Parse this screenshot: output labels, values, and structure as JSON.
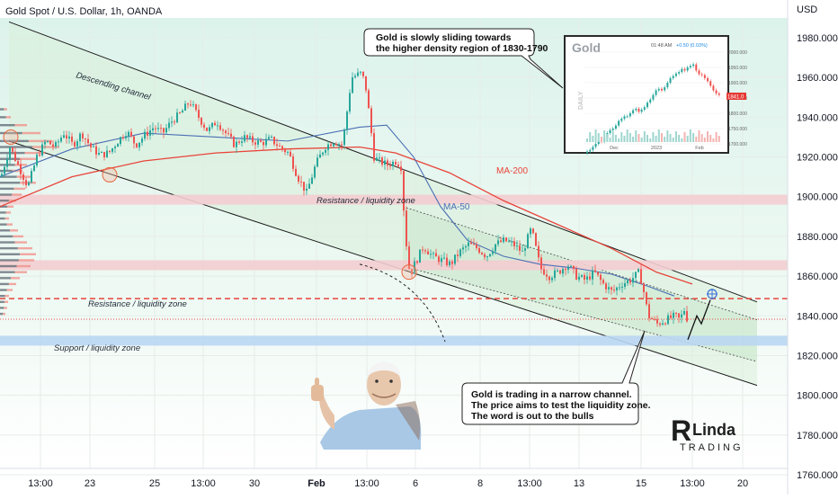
{
  "header": {
    "title": "Gold Spot / U.S. Dollar, 1h, OANDA",
    "currency": "USD"
  },
  "colors": {
    "up": "#26a69a",
    "down": "#ef5350",
    "ma200": "#e8443a",
    "ma50": "#4a6fb4",
    "resistance_zone": "#f3cdd0",
    "support_zone": "#b9d6f2",
    "channel_fill": "#e4f3e6",
    "current_price_bg": "#e8443a",
    "price_line": "#e8443a"
  },
  "chart_data": {
    "type": "candlestick",
    "title": "Gold Spot / U.S. Dollar, 1h, OANDA",
    "ylabel": "USD",
    "ylim": [
      1756,
      2000
    ],
    "y_ticks": [
      1760,
      1780,
      1800,
      1820,
      1840,
      1860,
      1880,
      1900,
      1920,
      1940,
      1960,
      1980
    ],
    "y_tick_labels": [
      "1760.000",
      "1780.000",
      "1800.000",
      "1820.000",
      "1840.000",
      "1860.000",
      "1880.000",
      "1900.000",
      "1920.000",
      "1940.000",
      "1960.000",
      "1980.000"
    ],
    "x_tick_labels": [
      "13:00",
      "23",
      "25",
      "13:00",
      "30",
      "Feb",
      "13:00",
      "6",
      "8",
      "13:00",
      "13",
      "15",
      "13:00",
      "20"
    ],
    "price_marks": [
      {
        "value": "1848.653",
        "price": 1848.653,
        "style": "dashed"
      },
      {
        "value": "1838.325",
        "price": 1838.325,
        "style": "dotted"
      }
    ],
    "path": [
      [
        0,
        1910
      ],
      [
        10,
        1925
      ],
      [
        20,
        1915
      ],
      [
        30,
        1905
      ],
      [
        40,
        1920
      ],
      [
        50,
        1928
      ],
      [
        60,
        1925
      ],
      [
        70,
        1932
      ],
      [
        80,
        1926
      ],
      [
        90,
        1932
      ],
      [
        100,
        1925
      ],
      [
        110,
        1921
      ],
      [
        120,
        1922
      ],
      [
        130,
        1928
      ],
      [
        140,
        1933
      ],
      [
        150,
        1926
      ],
      [
        160,
        1931
      ],
      [
        170,
        1935
      ],
      [
        180,
        1932
      ],
      [
        190,
        1938
      ],
      [
        200,
        1942
      ],
      [
        210,
        1948
      ],
      [
        220,
        1940
      ],
      [
        230,
        1933
      ],
      [
        240,
        1938
      ],
      [
        250,
        1932
      ],
      [
        260,
        1926
      ],
      [
        270,
        1930
      ],
      [
        280,
        1928
      ],
      [
        290,
        1927
      ],
      [
        300,
        1929
      ],
      [
        310,
        1925
      ],
      [
        320,
        1922
      ],
      [
        330,
        1910
      ],
      [
        340,
        1902
      ],
      [
        350,
        1916
      ],
      [
        360,
        1925
      ],
      [
        370,
        1928
      ],
      [
        380,
        1926
      ],
      [
        390,
        1960
      ],
      [
        400,
        1962
      ],
      [
        405,
        1958
      ],
      [
        410,
        1940
      ],
      [
        415,
        1920
      ],
      [
        420,
        1918
      ],
      [
        430,
        1916
      ],
      [
        440,
        1918
      ],
      [
        445,
        1915
      ],
      [
        450,
        1880
      ],
      [
        455,
        1860
      ],
      [
        460,
        1866
      ],
      [
        470,
        1875
      ],
      [
        480,
        1870
      ],
      [
        490,
        1868
      ],
      [
        500,
        1866
      ],
      [
        510,
        1872
      ],
      [
        520,
        1876
      ],
      [
        530,
        1874
      ],
      [
        540,
        1870
      ],
      [
        550,
        1876
      ],
      [
        560,
        1878
      ],
      [
        570,
        1876
      ],
      [
        580,
        1872
      ],
      [
        590,
        1884
      ],
      [
        600,
        1864
      ],
      [
        610,
        1860
      ],
      [
        620,
        1862
      ],
      [
        630,
        1866
      ],
      [
        640,
        1860
      ],
      [
        650,
        1858
      ],
      [
        660,
        1862
      ],
      [
        670,
        1856
      ],
      [
        680,
        1852
      ],
      [
        690,
        1856
      ],
      [
        700,
        1858
      ],
      [
        710,
        1862
      ],
      [
        715,
        1852
      ],
      [
        720,
        1840
      ],
      [
        730,
        1836
      ],
      [
        740,
        1838
      ],
      [
        750,
        1840
      ],
      [
        755,
        1838
      ],
      [
        760,
        1843
      ],
      [
        765,
        1836
      ]
    ],
    "ma200": [
      [
        0,
        1895
      ],
      [
        80,
        1910
      ],
      [
        160,
        1918
      ],
      [
        240,
        1922
      ],
      [
        320,
        1924
      ],
      [
        400,
        1925
      ],
      [
        440,
        1922
      ],
      [
        500,
        1912
      ],
      [
        560,
        1898
      ],
      [
        620,
        1886
      ],
      [
        680,
        1874
      ],
      [
        730,
        1862
      ],
      [
        770,
        1856
      ]
    ],
    "ma50": [
      [
        0,
        1910
      ],
      [
        80,
        1924
      ],
      [
        160,
        1932
      ],
      [
        240,
        1930
      ],
      [
        320,
        1928
      ],
      [
        400,
        1935
      ],
      [
        430,
        1936
      ],
      [
        460,
        1920
      ],
      [
        490,
        1895
      ],
      [
        520,
        1878
      ],
      [
        560,
        1870
      ],
      [
        600,
        1866
      ],
      [
        640,
        1864
      ],
      [
        680,
        1861
      ],
      [
        720,
        1855
      ],
      [
        750,
        1850
      ]
    ],
    "channel": {
      "upper": [
        [
          10,
          1988
        ],
        [
          842,
          1847
        ]
      ],
      "lower": [
        [
          10,
          1928
        ],
        [
          842,
          1805
        ]
      ],
      "inner_upper": [
        [
          448,
          1895
        ],
        [
          842,
          1838
        ]
      ],
      "inner_lower": [
        [
          448,
          1865
        ],
        [
          842,
          1817
        ]
      ]
    },
    "resistance_zones": [
      [
        1896,
        1901
      ],
      [
        1863,
        1868
      ]
    ],
    "support_zone": [
      1825,
      1830
    ],
    "projection": [
      [
        765,
        1828
      ],
      [
        775,
        1840
      ],
      [
        780,
        1836
      ],
      [
        790,
        1848
      ]
    ],
    "target_price": 1851,
    "volume_profile": [
      [
        1944,
        8
      ],
      [
        1940,
        12
      ],
      [
        1936,
        30
      ],
      [
        1932,
        45
      ],
      [
        1928,
        58
      ],
      [
        1925,
        66
      ],
      [
        1922,
        50
      ],
      [
        1919,
        40
      ],
      [
        1916,
        30
      ],
      [
        1913,
        25
      ],
      [
        1910,
        34
      ],
      [
        1907,
        40
      ],
      [
        1904,
        28
      ],
      [
        1901,
        24
      ],
      [
        1898,
        18
      ],
      [
        1895,
        15
      ],
      [
        1892,
        12
      ],
      [
        1889,
        10
      ],
      [
        1886,
        14
      ],
      [
        1883,
        20
      ],
      [
        1880,
        26
      ],
      [
        1877,
        30
      ],
      [
        1874,
        36
      ],
      [
        1871,
        40
      ],
      [
        1868,
        38
      ],
      [
        1865,
        34
      ],
      [
        1862,
        30
      ],
      [
        1859,
        22
      ],
      [
        1856,
        18
      ],
      [
        1853,
        14
      ],
      [
        1850,
        10
      ],
      [
        1847,
        9
      ],
      [
        1844,
        8
      ],
      [
        1841,
        6
      ]
    ]
  },
  "annotations": {
    "descending_channel": "Descending channel",
    "resistance_upper": "Resistance / liquidity zone",
    "resistance_lower": "Resistance / liquidity zone",
    "support": "Support / liquidity zone",
    "ma200_label": "MA-200",
    "ma50_label": "MA-50",
    "callout_top_line1": "Gold is slowly sliding towards",
    "callout_top_line2": "the higher density region of 1830-1790",
    "callout_bottom_line1": "Gold is trading in a narrow channel.",
    "callout_bottom_line2": "The price aims to test the liquidity zone.",
    "callout_bottom_line3": "The word is out to the bulls"
  },
  "inset": {
    "title": "Gold",
    "header_time": "01:48 AM",
    "header_change": "+0.50 (0.03%)",
    "side_label": "DAILY",
    "y_labels": [
      "2000.000",
      "1950.000",
      "1900.000",
      "1850.000",
      "1800.000",
      "1750.000",
      "1700.000"
    ],
    "price_tag": "1841.0",
    "x_labels": [
      "Dec",
      "2023",
      "Feb"
    ],
    "path": [
      1675,
      1680,
      1690,
      1700,
      1710,
      1708,
      1720,
      1735,
      1745,
      1750,
      1760,
      1775,
      1782,
      1790,
      1790,
      1800,
      1810,
      1815,
      1805,
      1812,
      1820,
      1835,
      1845,
      1860,
      1875,
      1880,
      1875,
      1885,
      1900,
      1915,
      1922,
      1930,
      1935,
      1945,
      1940,
      1950,
      1955,
      1960,
      1940,
      1928,
      1925,
      1915,
      1905,
      1890,
      1875,
      1865,
      1860
    ]
  },
  "logo": {
    "brand_initial": "R",
    "brand_name": "Linda",
    "brand_sub": "TRADING"
  }
}
